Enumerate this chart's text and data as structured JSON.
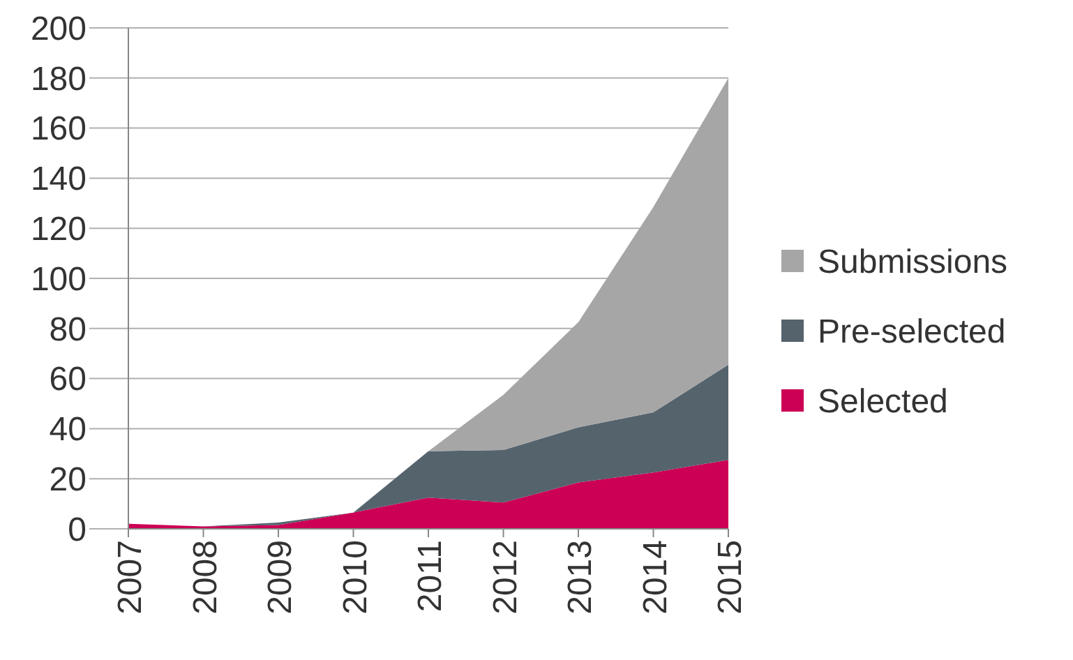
{
  "chart_data": {
    "type": "area",
    "stacked": true,
    "categories": [
      "2007",
      "2008",
      "2009",
      "2010",
      "2011",
      "2012",
      "2013",
      "2014",
      "2015"
    ],
    "series": [
      {
        "name": "Selected",
        "color": "#cc0055",
        "values": [
          2,
          1,
          1.5,
          6.5,
          12.5,
          10.5,
          18.5,
          22.5,
          27.5
        ]
      },
      {
        "name": "Pre-selected",
        "color": "#55636d",
        "values": [
          0,
          0,
          1,
          0,
          18.5,
          21,
          22,
          24,
          38
        ]
      },
      {
        "name": "Submissions",
        "color": "#a6a6a6",
        "values": [
          0,
          0,
          0,
          0,
          0,
          22,
          42,
          82,
          114.5
        ]
      }
    ],
    "ylim": [
      0,
      200
    ],
    "yticks": [
      0,
      20,
      40,
      60,
      80,
      100,
      120,
      140,
      160,
      180,
      200
    ],
    "grid": "y",
    "legend": "right"
  }
}
